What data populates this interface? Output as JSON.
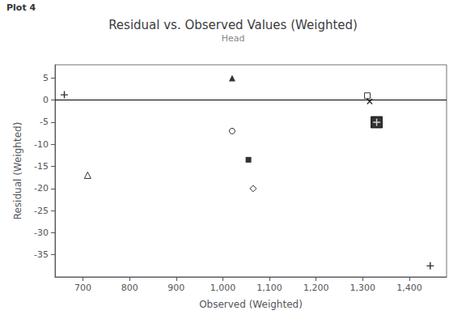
{
  "chart_data": {
    "type": "scatter",
    "title": "Residual vs. Observed Values (Weighted)",
    "subtitle": "Head",
    "annotations": [
      "Plot 4"
    ],
    "xlabel": "Observed (Weighted)",
    "ylabel": "Residual (Weighted)",
    "xlim": [
      640,
      1480
    ],
    "ylim": [
      -40,
      8
    ],
    "xticks": [
      700,
      800,
      900,
      1000,
      1100,
      1200,
      1300,
      1400
    ],
    "yticks": [
      5,
      0,
      -5,
      -10,
      -15,
      -20,
      -25,
      -30,
      -35
    ],
    "grid": false,
    "color": "black",
    "hlines": [
      0
    ],
    "series": [
      {
        "x": [
          660
        ],
        "values": [
          1.2
        ],
        "marker": "plus"
      },
      {
        "x": [
          1020
        ],
        "values": [
          5.0
        ],
        "marker": "triangle"
      },
      {
        "x": [
          1020
        ],
        "values": [
          -7.0
        ],
        "marker": "circle_open"
      },
      {
        "x": [
          1055
        ],
        "values": [
          -13.5
        ],
        "marker": "square"
      },
      {
        "x": [
          1065
        ],
        "values": [
          -20.0
        ],
        "marker": "diamond_open"
      },
      {
        "x": [
          710
        ],
        "values": [
          -17.0
        ],
        "marker": "triangle_open"
      },
      {
        "x": [
          1310
        ],
        "values": [
          1.0
        ],
        "marker": "square_open"
      },
      {
        "x": [
          1315
        ],
        "values": [
          -0.3
        ],
        "marker": "cross"
      },
      {
        "x": [
          1445
        ],
        "values": [
          -37.5
        ],
        "marker": "plus"
      },
      {
        "x": [
          1330
        ],
        "values": [
          -5.0
        ],
        "marker": "square_plus"
      }
    ]
  }
}
